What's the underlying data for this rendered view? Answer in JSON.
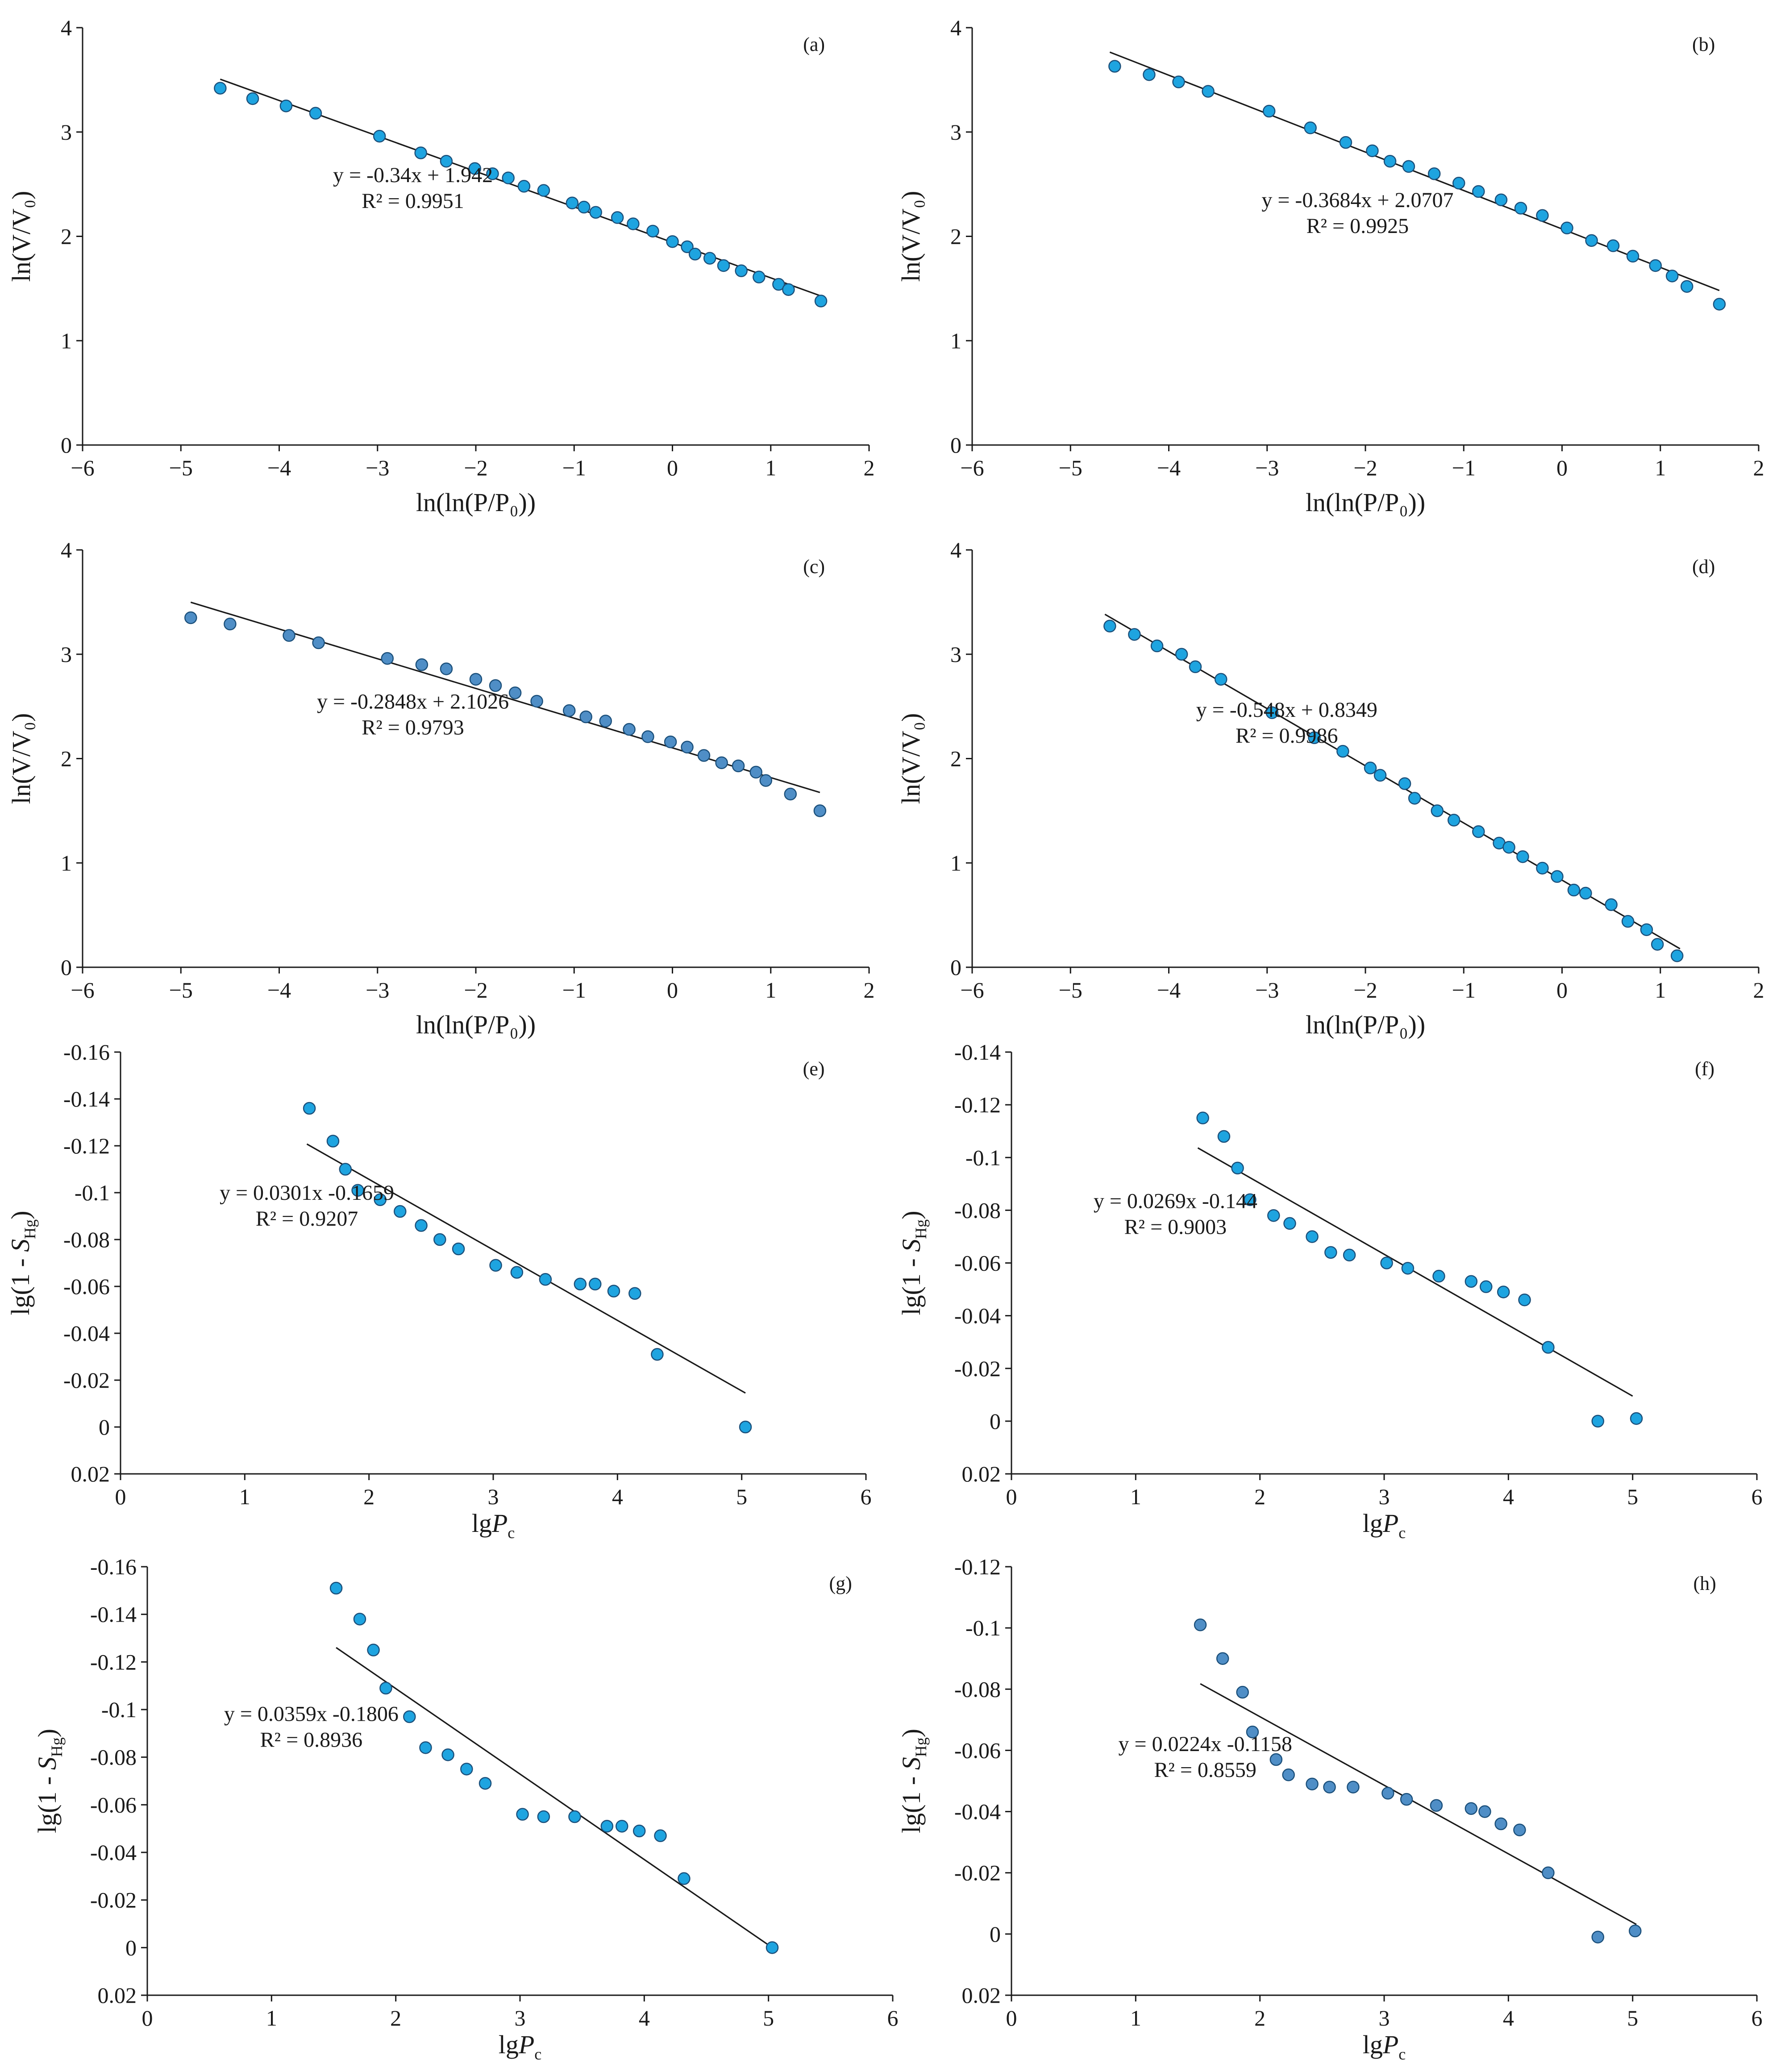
{
  "colors": {
    "marker_bright": "#1ea4e0",
    "marker_steel": "#4f8ec6",
    "line": "#1a1a1a"
  },
  "chart_data": [
    {
      "panel": "(a)",
      "type": "scatter",
      "xlabel": "ln(ln(P/P₀))",
      "ylabel": "ln(V/V₀)",
      "xlim": [
        -6,
        2
      ],
      "ylim": [
        0,
        4
      ],
      "y_inverted": false,
      "xticks": [
        "−6",
        "−5",
        "−4",
        "−3",
        "−2",
        "−1",
        "0",
        "1",
        "2"
      ],
      "yticks": [
        "0",
        "1",
        "2",
        "3",
        "4"
      ],
      "fit": {
        "slope": -0.34,
        "intercept": 1.942,
        "x_range": [
          -4.6,
          1.55
        ]
      },
      "equation": "y = -0.34x + 1.942",
      "r2_text": "R² = 0.9951",
      "marker": "bright",
      "x": [
        -4.6,
        -4.27,
        -3.93,
        -3.63,
        -2.98,
        -2.56,
        -2.3,
        -2.01,
        -1.83,
        -1.67,
        -1.51,
        -1.31,
        -1.02,
        -0.9,
        -0.78,
        -0.56,
        -0.4,
        -0.2,
        0.0,
        0.15,
        0.23,
        0.38,
        0.52,
        0.7,
        0.88,
        1.08,
        1.18,
        1.51
      ],
      "y": [
        3.42,
        3.32,
        3.25,
        3.18,
        2.96,
        2.8,
        2.72,
        2.65,
        2.6,
        2.56,
        2.48,
        2.44,
        2.32,
        2.28,
        2.23,
        2.18,
        2.12,
        2.05,
        1.95,
        1.9,
        1.83,
        1.79,
        1.72,
        1.67,
        1.61,
        1.54,
        1.49,
        1.38
      ]
    },
    {
      "panel": "(b)",
      "type": "scatter",
      "xlabel": "ln(ln(P/P₀))",
      "ylabel": "ln(V/V₀)",
      "xlim": [
        -6,
        2
      ],
      "ylim": [
        0,
        4
      ],
      "y_inverted": false,
      "xticks": [
        "−6",
        "−5",
        "−4",
        "−3",
        "−2",
        "−1",
        "0",
        "1",
        "2"
      ],
      "yticks": [
        "0",
        "1",
        "2",
        "3",
        "4"
      ],
      "fit": {
        "slope": -0.3684,
        "intercept": 2.0707,
        "x_range": [
          -4.6,
          1.6
        ]
      },
      "equation": "y = -0.3684x + 2.0707",
      "r2_text": "R² = 0.9925",
      "marker": "bright",
      "x": [
        -4.55,
        -4.2,
        -3.9,
        -3.6,
        -2.98,
        -2.56,
        -2.2,
        -1.93,
        -1.75,
        -1.56,
        -1.3,
        -1.05,
        -0.85,
        -0.62,
        -0.42,
        -0.2,
        0.05,
        0.3,
        0.52,
        0.72,
        0.95,
        1.12,
        1.27,
        1.6
      ],
      "y": [
        3.63,
        3.55,
        3.48,
        3.39,
        3.2,
        3.04,
        2.9,
        2.82,
        2.72,
        2.67,
        2.6,
        2.51,
        2.43,
        2.35,
        2.27,
        2.2,
        2.08,
        1.96,
        1.91,
        1.81,
        1.72,
        1.62,
        1.52,
        1.35
      ]
    },
    {
      "panel": "(c)",
      "type": "scatter",
      "xlabel": "ln(ln(P/P₀))",
      "ylabel": "ln(V/V₀)",
      "xlim": [
        -6,
        2
      ],
      "ylim": [
        0,
        4
      ],
      "y_inverted": false,
      "xticks": [
        "−6",
        "−5",
        "−4",
        "−3",
        "−2",
        "−1",
        "0",
        "1",
        "2"
      ],
      "yticks": [
        "0",
        "1",
        "2",
        "3",
        "4"
      ],
      "fit": {
        "slope": -0.2848,
        "intercept": 2.1026,
        "x_range": [
          -4.9,
          1.5
        ]
      },
      "equation": "y = -0.2848x + 2.1026",
      "r2_text": "R² = 0.9793",
      "marker": "steel",
      "x": [
        -4.9,
        -4.5,
        -3.9,
        -3.6,
        -2.9,
        -2.55,
        -2.3,
        -2.0,
        -1.8,
        -1.6,
        -1.38,
        -1.05,
        -0.88,
        -0.68,
        -0.44,
        -0.25,
        -0.02,
        0.15,
        0.32,
        0.5,
        0.67,
        0.85,
        0.95,
        1.2,
        1.5
      ],
      "y": [
        3.35,
        3.29,
        3.18,
        3.11,
        2.96,
        2.9,
        2.86,
        2.76,
        2.7,
        2.63,
        2.55,
        2.46,
        2.4,
        2.36,
        2.28,
        2.21,
        2.16,
        2.11,
        2.03,
        1.96,
        1.93,
        1.87,
        1.79,
        1.66,
        1.5
      ]
    },
    {
      "panel": "(d)",
      "type": "scatter",
      "xlabel": "ln(ln(P/P₀))",
      "ylabel": "ln(V/V₀)",
      "xlim": [
        -6,
        2
      ],
      "ylim": [
        0,
        4
      ],
      "y_inverted": false,
      "xticks": [
        "−6",
        "−5",
        "−4",
        "−3",
        "−2",
        "−1",
        "0",
        "1",
        "2"
      ],
      "yticks": [
        "0",
        "1",
        "2",
        "3",
        "4"
      ],
      "fit": {
        "slope": -0.548,
        "intercept": 0.8349,
        "x_range": [
          -4.65,
          1.2
        ]
      },
      "equation": "y = -0.548x + 0.8349",
      "r2_text": "R² = 0.9986",
      "marker": "bright",
      "x": [
        -4.6,
        -4.35,
        -4.12,
        -3.87,
        -3.73,
        -3.47,
        -2.95,
        -2.52,
        -2.23,
        -1.95,
        -1.85,
        -1.6,
        -1.5,
        -1.27,
        -1.1,
        -0.85,
        -0.64,
        -0.54,
        -0.4,
        -0.2,
        -0.05,
        0.12,
        0.24,
        0.5,
        0.67,
        0.86,
        0.97,
        1.17
      ],
      "y": [
        3.27,
        3.19,
        3.08,
        3.0,
        2.88,
        2.76,
        2.44,
        2.2,
        2.07,
        1.91,
        1.84,
        1.76,
        1.62,
        1.5,
        1.41,
        1.3,
        1.19,
        1.15,
        1.06,
        0.95,
        0.87,
        0.74,
        0.71,
        0.6,
        0.44,
        0.36,
        0.22,
        0.11
      ]
    },
    {
      "panel": "(e)",
      "type": "scatter",
      "xlabel": "lgP_c",
      "ylabel": "lg(1 - S_Hg)",
      "xlim": [
        0,
        6
      ],
      "ylim": [
        -0.16,
        0.02
      ],
      "y_inverted": true,
      "xticks": [
        "0",
        "1",
        "2",
        "3",
        "4",
        "5",
        "6"
      ],
      "yticks": [
        "-0.16",
        "-0.14",
        "-0.12",
        "-0.1",
        "-0.08",
        "-0.06",
        "-0.04",
        "-0.02",
        "0",
        "0.02"
      ],
      "fit": {
        "slope": 0.0301,
        "intercept": -0.1659,
        "x_range": [
          1.5,
          5.03
        ]
      },
      "equation": "y = 0.0301x -0.1659",
      "r2_text": "R² = 0.9207",
      "marker": "bright",
      "x": [
        1.52,
        1.71,
        1.81,
        1.91,
        2.09,
        2.25,
        2.42,
        2.57,
        2.72,
        3.02,
        3.19,
        3.42,
        3.7,
        3.82,
        3.97,
        4.14,
        4.32,
        5.03
      ],
      "y": [
        -0.136,
        -0.122,
        -0.11,
        -0.101,
        -0.097,
        -0.092,
        -0.086,
        -0.08,
        -0.076,
        -0.069,
        -0.066,
        -0.063,
        -0.061,
        -0.061,
        -0.058,
        -0.057,
        -0.031,
        0.0
      ]
    },
    {
      "panel": "(f)",
      "type": "scatter",
      "xlabel": "lgP_c",
      "ylabel": "lg(1 - S_Hg)",
      "xlim": [
        0,
        6
      ],
      "ylim": [
        -0.14,
        0.02
      ],
      "y_inverted": true,
      "xticks": [
        "0",
        "1",
        "2",
        "3",
        "4",
        "5",
        "6"
      ],
      "yticks": [
        "-0.14",
        "-0.12",
        "-0.1",
        "-0.08",
        "-0.06",
        "-0.04",
        "-0.02",
        "0",
        "0.02"
      ],
      "fit": {
        "slope": 0.0269,
        "intercept": -0.144,
        "x_range": [
          1.5,
          5.0
        ]
      },
      "equation": "y = 0.0269x -0.144",
      "r2_text": "R² = 0.9003",
      "marker": "bright",
      "x": [
        1.54,
        1.71,
        1.82,
        1.92,
        2.11,
        2.24,
        2.42,
        2.57,
        2.72,
        3.02,
        3.19,
        3.44,
        3.7,
        3.82,
        3.96,
        4.13,
        4.32,
        4.72,
        5.03
      ],
      "y": [
        -0.115,
        -0.108,
        -0.096,
        -0.084,
        -0.078,
        -0.075,
        -0.07,
        -0.064,
        -0.063,
        -0.06,
        -0.058,
        -0.055,
        -0.053,
        -0.051,
        -0.049,
        -0.046,
        -0.028,
        0.0,
        -0.001
      ]
    },
    {
      "panel": "(g)",
      "type": "scatter",
      "xlabel": "lgP_c",
      "ylabel": "lg(1 - S_Hg)",
      "xlim": [
        0,
        6
      ],
      "ylim": [
        -0.16,
        0.02
      ],
      "y_inverted": true,
      "xticks": [
        "0",
        "1",
        "2",
        "3",
        "4",
        "5",
        "6"
      ],
      "yticks": [
        "-0.16",
        "-0.14",
        "-0.12",
        "-0.1",
        "-0.08",
        "-0.06",
        "-0.04",
        "-0.02",
        "0",
        "0.02"
      ],
      "fit": {
        "slope": 0.0359,
        "intercept": -0.1806,
        "x_range": [
          1.52,
          5.03
        ]
      },
      "equation": "y = 0.0359x -0.1806",
      "r2_text": "R² = 0.8936",
      "marker": "bright",
      "x": [
        1.52,
        1.71,
        1.82,
        1.92,
        2.11,
        2.24,
        2.42,
        2.57,
        2.72,
        3.02,
        3.19,
        3.44,
        3.7,
        3.82,
        3.96,
        4.13,
        4.32,
        5.03
      ],
      "y": [
        -0.151,
        -0.138,
        -0.125,
        -0.109,
        -0.097,
        -0.084,
        -0.081,
        -0.075,
        -0.069,
        -0.056,
        -0.055,
        -0.055,
        -0.051,
        -0.051,
        -0.049,
        -0.047,
        -0.029,
        0.0
      ]
    },
    {
      "panel": "(h)",
      "type": "scatter",
      "xlabel": "lgP_c",
      "ylabel": "lg(1 - S_Hg)",
      "xlim": [
        0,
        6
      ],
      "ylim": [
        -0.12,
        0.02
      ],
      "y_inverted": true,
      "xticks": [
        "0",
        "1",
        "2",
        "3",
        "4",
        "5",
        "6"
      ],
      "yticks": [
        "-0.12",
        "-0.1",
        "-0.08",
        "-0.06",
        "-0.04",
        "-0.02",
        "0",
        "0.02"
      ],
      "fit": {
        "slope": 0.0224,
        "intercept": -0.1158,
        "x_range": [
          1.52,
          5.03
        ]
      },
      "equation": "y = 0.0224x -0.1158",
      "r2_text": "R² = 0.8559",
      "marker": "steel",
      "x": [
        1.52,
        1.7,
        1.86,
        1.94,
        2.13,
        2.23,
        2.42,
        2.56,
        2.75,
        3.03,
        3.18,
        3.42,
        3.7,
        3.81,
        3.94,
        4.09,
        4.32,
        4.72,
        5.02
      ],
      "y": [
        -0.101,
        -0.09,
        -0.079,
        -0.066,
        -0.057,
        -0.052,
        -0.049,
        -0.048,
        -0.048,
        -0.046,
        -0.044,
        -0.042,
        -0.041,
        -0.04,
        -0.036,
        -0.034,
        -0.02,
        0.001,
        -0.001
      ]
    }
  ]
}
